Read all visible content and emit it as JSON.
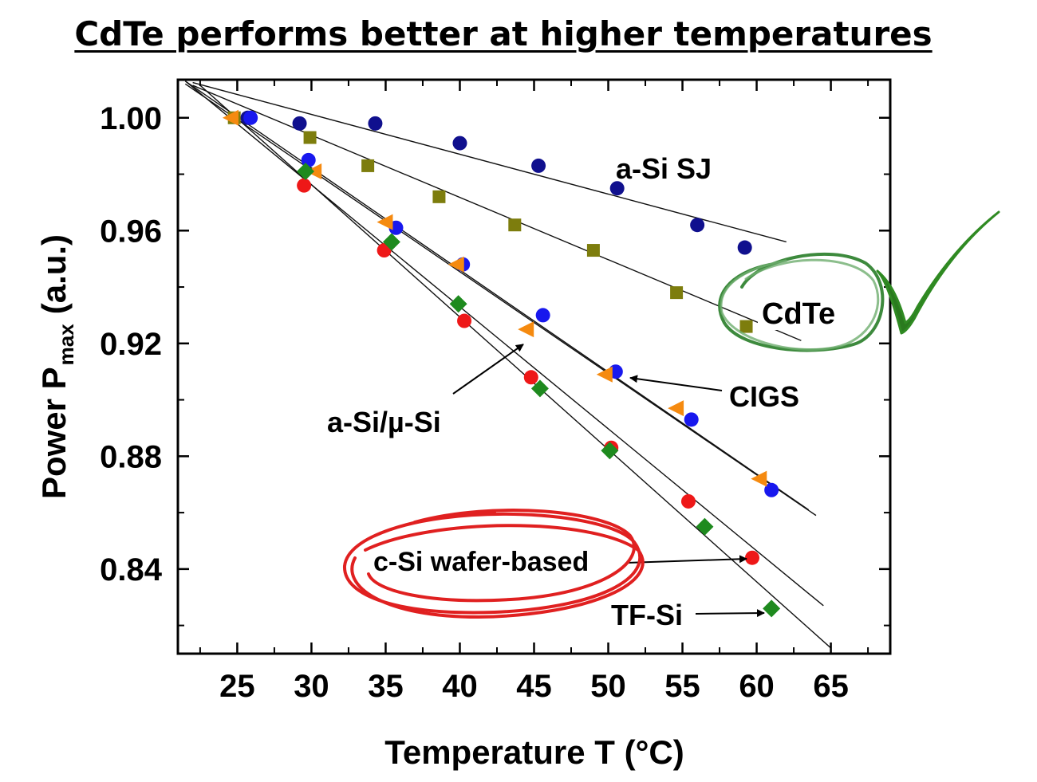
{
  "title": "CdTe performs better at higher temperatures",
  "chart_data": {
    "type": "scatter",
    "xlabel": "Temperature T (°C)",
    "ylabel_main": "Power P",
    "ylabel_sub": "max",
    "ylabel_unit": "(a.u.)",
    "xlim": [
      21,
      69
    ],
    "ylim": [
      0.81,
      1.0135
    ],
    "xticks": [
      25,
      30,
      35,
      40,
      45,
      50,
      55,
      60,
      65
    ],
    "yticks": [
      0.84,
      0.88,
      0.92,
      0.96,
      1.0
    ],
    "ytick_labels": [
      "0.84",
      "0.88",
      "0.92",
      "0.96",
      "1.00"
    ],
    "grid": false,
    "series": [
      {
        "name": "a-Si SJ",
        "marker": "circle",
        "color": "#10108e",
        "x": [
          25.7,
          29.2,
          34.3,
          40.0,
          45.3,
          50.6,
          56.0,
          59.2
        ],
        "y": [
          1.0,
          0.998,
          0.998,
          0.991,
          0.983,
          0.975,
          0.962,
          0.954
        ],
        "fit": [
          [
            22,
            1.0125
          ],
          [
            62,
            0.956
          ]
        ]
      },
      {
        "name": "CdTe",
        "marker": "square",
        "color": "#7d7d0d",
        "x": [
          24.8,
          29.9,
          33.8,
          38.6,
          43.7,
          49.0,
          54.6,
          59.3
        ],
        "y": [
          1.0,
          0.993,
          0.983,
          0.972,
          0.962,
          0.953,
          0.938,
          0.926
        ],
        "fit": [
          [
            22,
            1.0115
          ],
          [
            63,
            0.921
          ]
        ]
      },
      {
        "name": "CIGS",
        "marker": "circle",
        "color": "#1818ee",
        "x": [
          25.9,
          29.8,
          35.7,
          40.2,
          45.6,
          50.5,
          55.6,
          61.0
        ],
        "y": [
          1.0,
          0.985,
          0.961,
          0.948,
          0.93,
          0.91,
          0.893,
          0.868
        ],
        "fit": [
          [
            21.5,
            1.013
          ],
          [
            63.5,
            0.861
          ]
        ]
      },
      {
        "name": "a-Si/µ-Si",
        "marker": "triangle-left",
        "color": "#f58a10",
        "x": [
          24.6,
          30.2,
          35.0,
          39.8,
          44.5,
          49.8,
          54.6,
          60.2
        ],
        "y": [
          1.0,
          0.981,
          0.963,
          0.948,
          0.925,
          0.909,
          0.897,
          0.872
        ],
        "fit": [
          [
            21.5,
            1.012
          ],
          [
            64,
            0.859
          ]
        ]
      },
      {
        "name": "c-Si wafer-based",
        "marker": "circle",
        "color": "#ee1818",
        "x": [
          29.5,
          34.9,
          40.3,
          44.8,
          50.2,
          55.4,
          59.7
        ],
        "y": [
          0.976,
          0.953,
          0.928,
          0.908,
          0.883,
          0.864,
          0.844
        ],
        "fit": [
          [
            21.5,
            1.013
          ],
          [
            64.5,
            0.827
          ]
        ]
      },
      {
        "name": "TF-Si",
        "marker": "diamond",
        "color": "#1e8a1e",
        "x": [
          29.6,
          35.4,
          39.9,
          45.4,
          50.1,
          56.5,
          61.0
        ],
        "y": [
          0.981,
          0.956,
          0.934,
          0.904,
          0.882,
          0.855,
          0.826
        ],
        "fit": [
          [
            22.5,
            1.0115
          ],
          [
            65,
            0.812
          ]
        ]
      }
    ],
    "annotations": {
      "asi_sj": "a-Si SJ",
      "cdte": "CdTe",
      "cigs": "CIGS",
      "asi_musi": "a-Si/µ-Si",
      "csi": "c-Si wafer-based",
      "tfsi": "TF-Si"
    },
    "highlight_colors": {
      "cdte_circle": "#3d8a3d",
      "checkmark": "#2a7a1e",
      "csi_circle": "#e02020"
    }
  }
}
